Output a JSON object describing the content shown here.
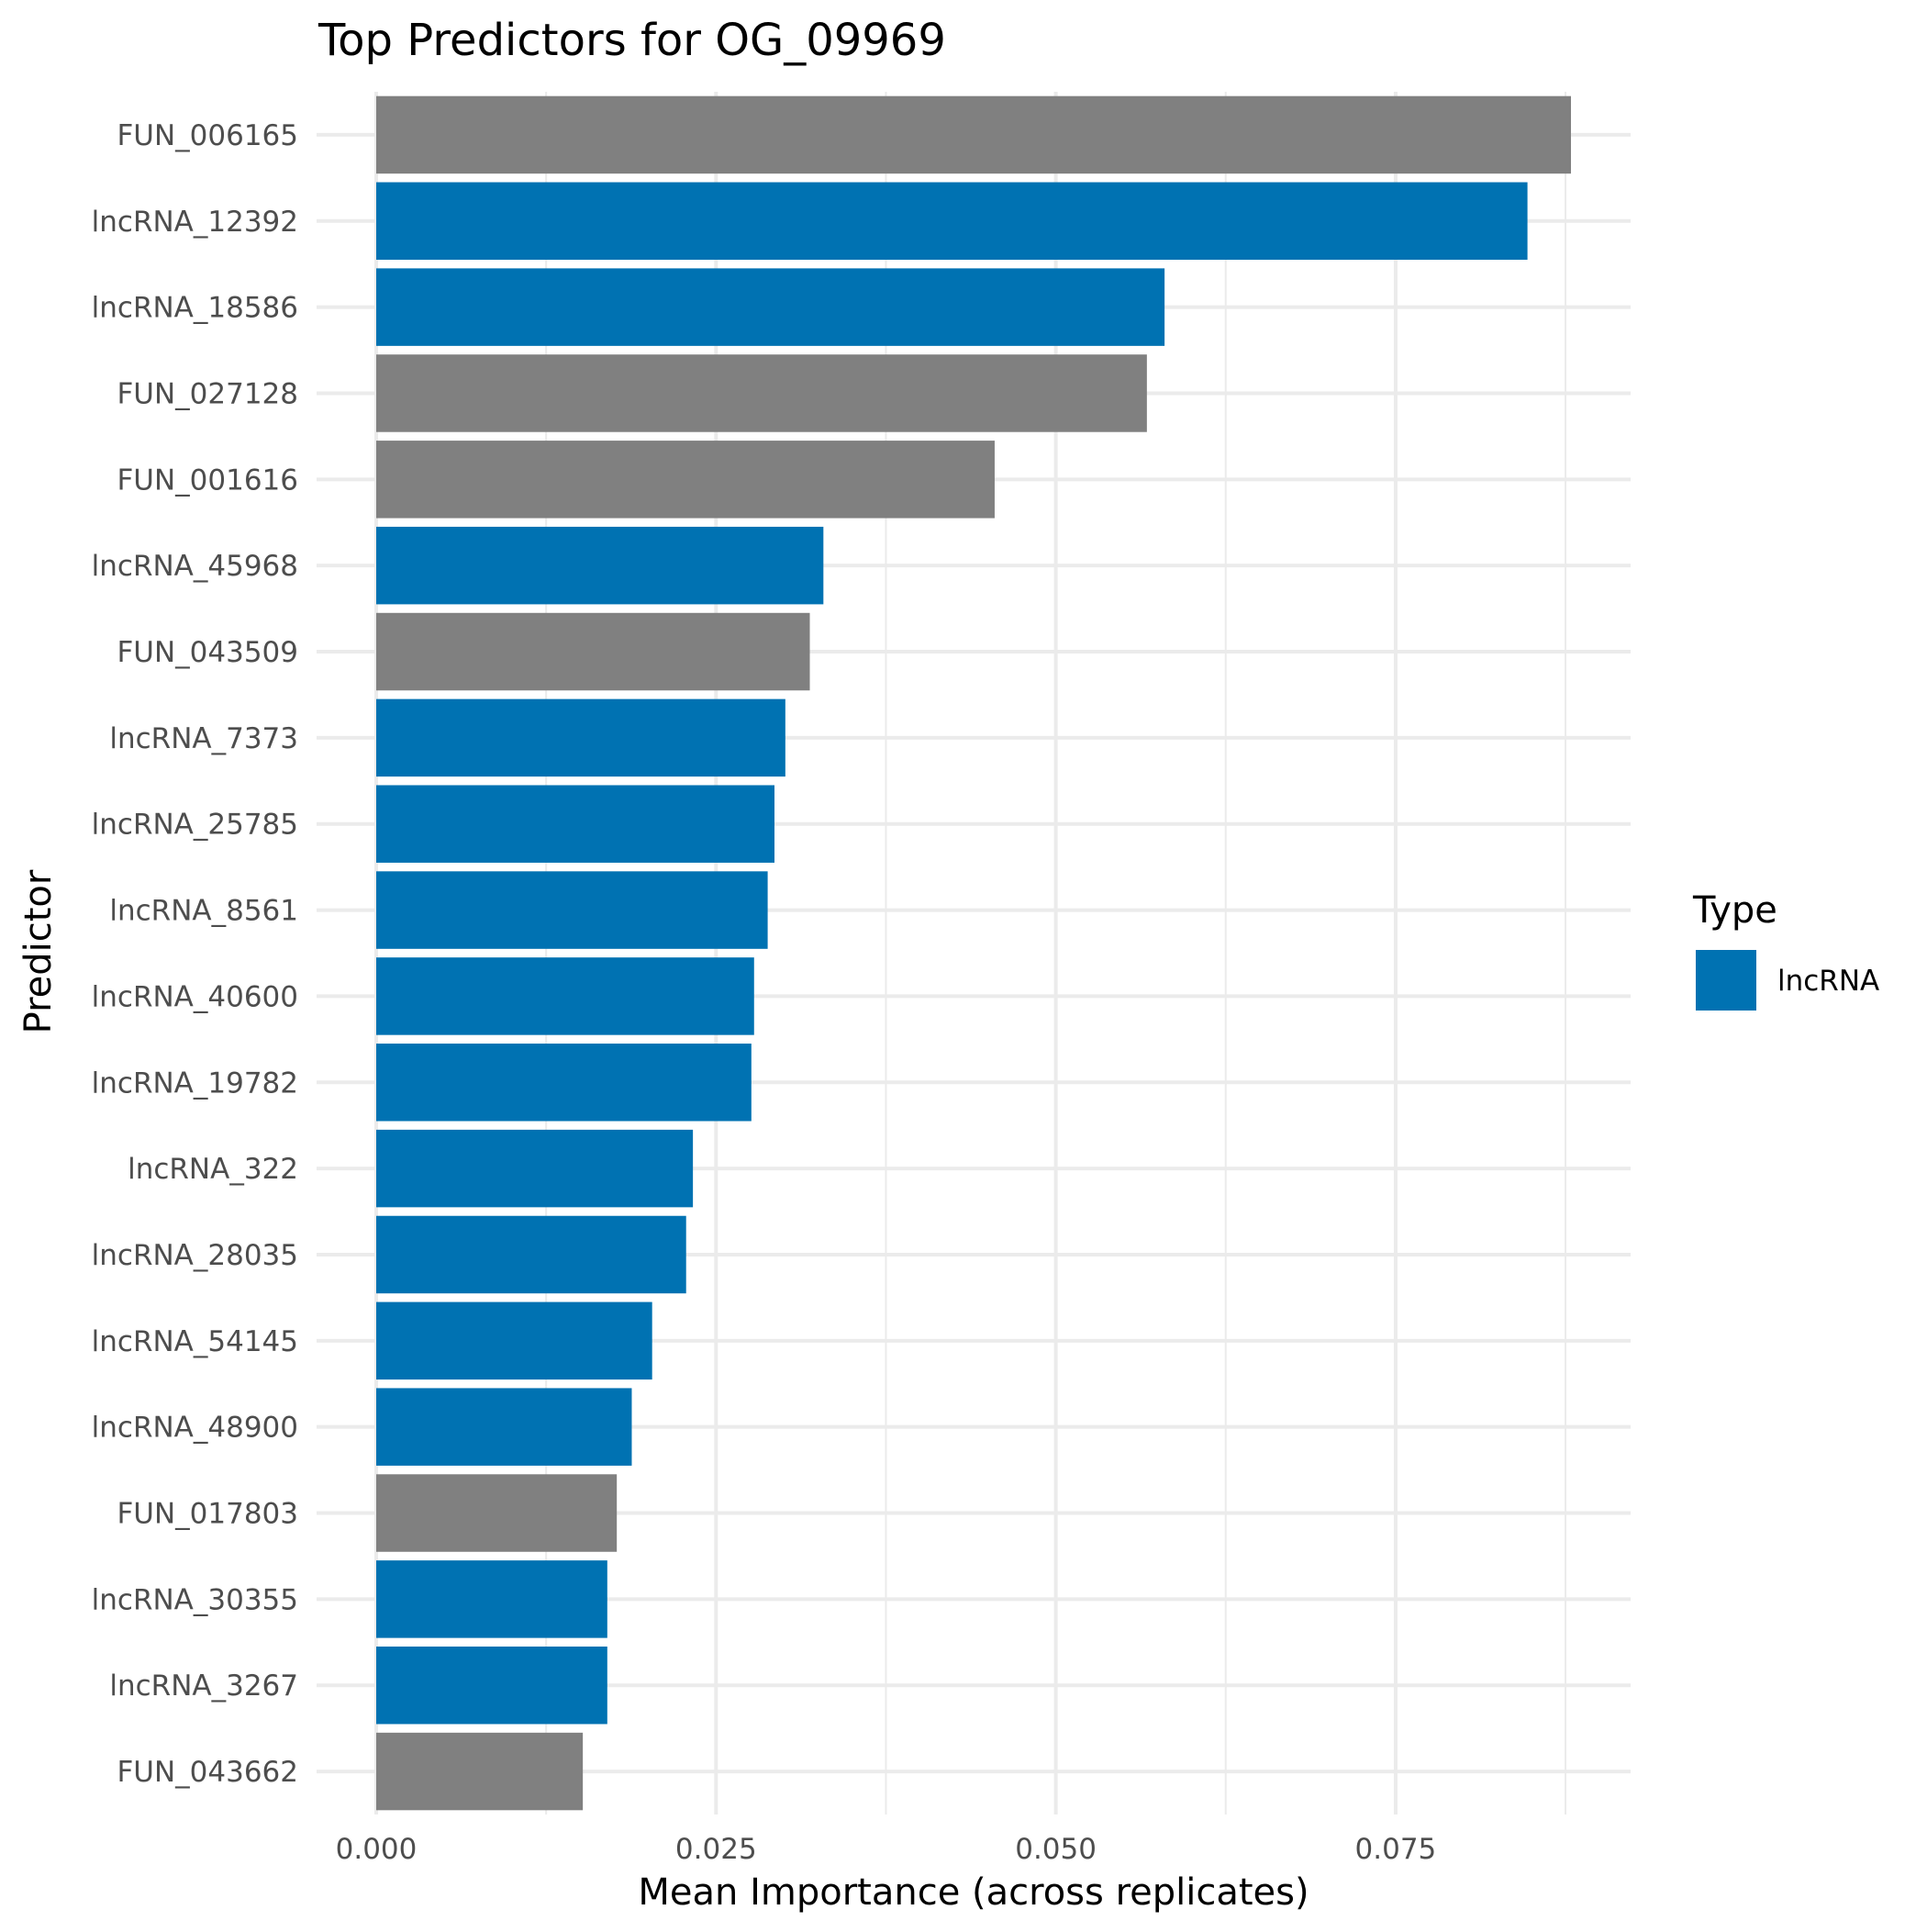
{
  "chart_data": {
    "type": "bar",
    "orientation": "horizontal",
    "title": "Top Predictors for OG_09969",
    "xlabel": "Mean Importance (across replicates)",
    "ylabel": "Predictor",
    "xlim": [
      0,
      0.088
    ],
    "xticks": [
      0,
      0.025,
      0.05,
      0.075
    ],
    "xtick_labels": [
      "0.000",
      "0.025",
      "0.050",
      "0.075"
    ],
    "grid": true,
    "legend": {
      "title": "Type",
      "placement": "right",
      "entries": [
        {
          "label": "lncRNA",
          "color": "#0072b2"
        }
      ]
    },
    "colors": {
      "lncRNA": "#0072b2",
      "other": "#808080"
    },
    "categories": [
      "FUN_006165",
      "lncRNA_12392",
      "lncRNA_18586",
      "FUN_027128",
      "FUN_001616",
      "lncRNA_45968",
      "FUN_043509",
      "lncRNA_7373",
      "lncRNA_25785",
      "lncRNA_8561",
      "lncRNA_40600",
      "lncRNA_19782",
      "lncRNA_322",
      "lncRNA_28035",
      "lncRNA_54145",
      "lncRNA_48900",
      "FUN_017803",
      "lncRNA_30355",
      "lncRNA_3267",
      "FUN_043662"
    ],
    "values": [
      0.0879,
      0.0847,
      0.058,
      0.0567,
      0.0455,
      0.0329,
      0.0319,
      0.0301,
      0.0293,
      0.0288,
      0.0278,
      0.0276,
      0.0233,
      0.0228,
      0.0203,
      0.0188,
      0.0177,
      0.017,
      0.017,
      0.0152
    ],
    "types": [
      "other",
      "lncRNA",
      "lncRNA",
      "other",
      "other",
      "lncRNA",
      "other",
      "lncRNA",
      "lncRNA",
      "lncRNA",
      "lncRNA",
      "lncRNA",
      "lncRNA",
      "lncRNA",
      "lncRNA",
      "lncRNA",
      "other",
      "lncRNA",
      "lncRNA",
      "other"
    ]
  }
}
